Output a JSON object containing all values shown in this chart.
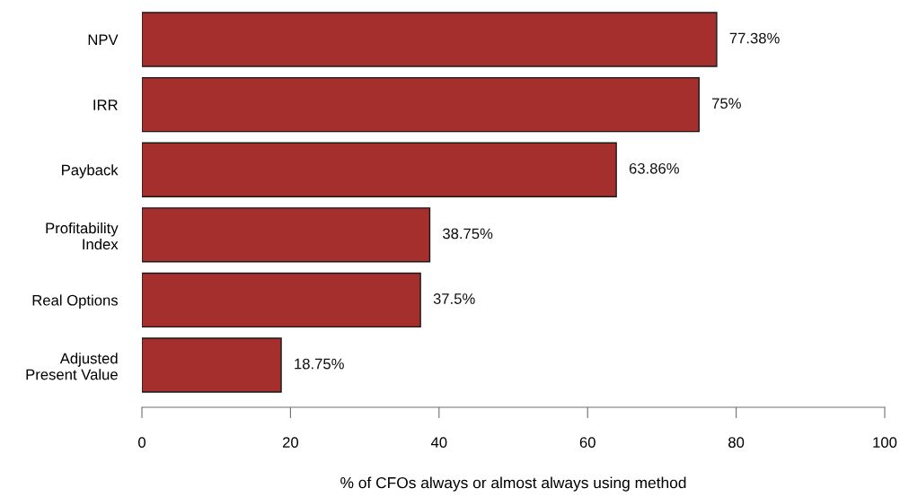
{
  "chart_data": {
    "type": "bar",
    "orientation": "horizontal",
    "categories": [
      "NPV",
      "IRR",
      "Payback",
      "Profitability\nIndex",
      "Real Options",
      "Adjusted\nPresent Value"
    ],
    "values": [
      77.38,
      75,
      63.86,
      38.75,
      37.5,
      18.75
    ],
    "color": "#a52f2c",
    "value_labels": [
      "77.38%",
      "75%",
      "63.86%",
      "38.75%",
      "37.5%",
      "18.75%"
    ],
    "xlim": [
      0,
      100
    ],
    "xticks": [
      0,
      20,
      40,
      60,
      80,
      100
    ],
    "xlabel": "% of CFOs always or almost always using method"
  }
}
